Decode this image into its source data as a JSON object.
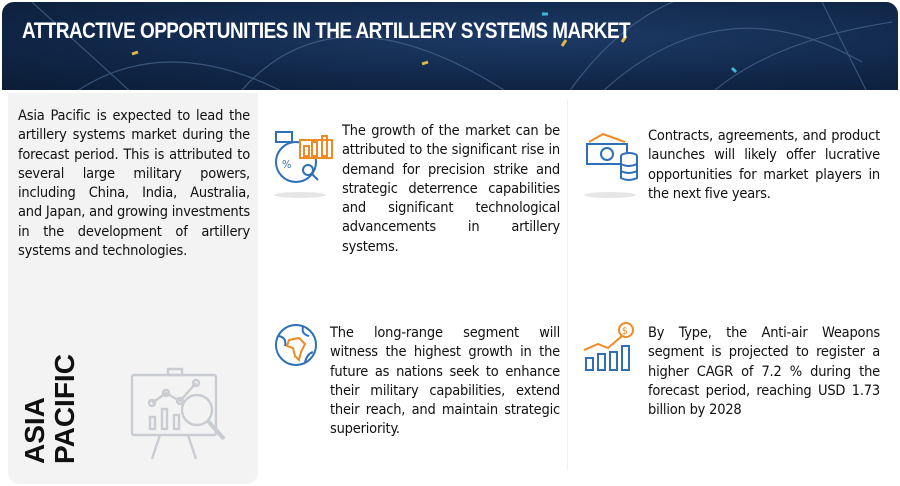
{
  "header": {
    "title": "ATTRACTIVE OPPORTUNITIES IN THE ARTILLERY SYSTEMS MARKET"
  },
  "left_panel": {
    "text": "Asia Pacific is expected to lead the artillery systems market during the forecast period. This is attributed to several large military powers, including China, India, Australia, and Japan, and growing investments in the development of artillery systems and technologies.",
    "region_line1": "ASIA",
    "region_line2": "PACIFIC",
    "icon": "presentation-analytics-icon"
  },
  "cards": [
    {
      "icon": "percent-growth-chart-icon",
      "text": "The growth of the market can be attributed to the significant rise in demand for precision strike and strategic deterrence capabilities and significant technological advancements in artillery systems."
    },
    {
      "icon": "money-coins-icon",
      "text": "Contracts, agreements, and product launches will likely offer lucrative opportunities for market players in the next five years."
    },
    {
      "icon": "globe-icon",
      "text": "The long-range segment will witness the highest growth in the future as nations seek to enhance their military capabilities, extend their reach, and maintain strategic superiority."
    },
    {
      "icon": "dollar-growth-chart-icon",
      "text": "By Type, the Anti-air Weapons segment is projected to register a higher CAGR of 7.2 % during the forecast period, reaching USD 1.73 billion by 2028"
    }
  ],
  "colors": {
    "header_bg": "#102748",
    "accent_blue": "#2f6fb5",
    "accent_orange": "#f08a24",
    "panel_bg": "#f3f3f4"
  }
}
